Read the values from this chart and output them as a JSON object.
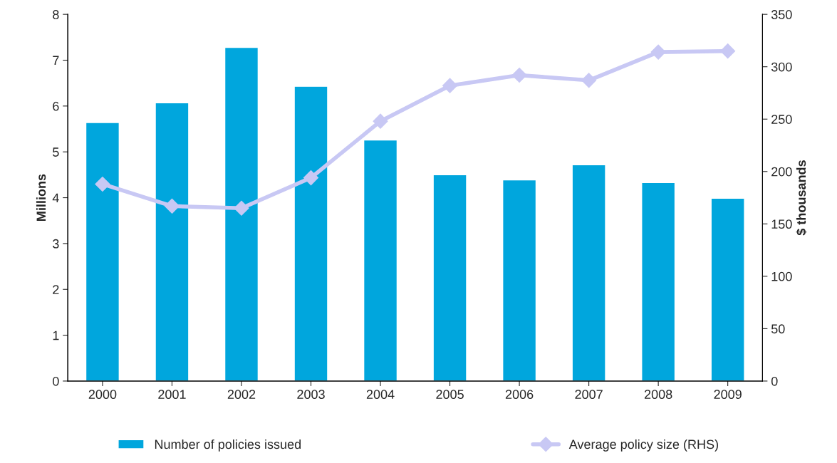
{
  "chart_data": {
    "type": "bar",
    "categories": [
      "2000",
      "2001",
      "2002",
      "2003",
      "2004",
      "2005",
      "2006",
      "2007",
      "2008",
      "2009"
    ],
    "ylabel": "Millions",
    "y2label": "$ thousands",
    "ylim": [
      0,
      8
    ],
    "yticks": [
      0,
      1,
      2,
      3,
      4,
      5,
      6,
      7,
      8
    ],
    "y2lim": [
      0,
      350
    ],
    "y2ticks": [
      0,
      50,
      100,
      150,
      200,
      250,
      300,
      350
    ],
    "series": [
      {
        "name": "Number of policies issued",
        "color": "#00a6dd",
        "values": [
          5.64,
          6.07,
          7.28,
          6.43,
          5.26,
          4.5,
          4.39,
          4.72,
          4.33,
          3.99
        ]
      },
      {
        "name": "Average policy size (RHS)",
        "type": "line",
        "axis": "y2",
        "color": "#c8c8f4",
        "marker": "diamond",
        "values": [
          188,
          167,
          165,
          194,
          248,
          282,
          292,
          287,
          314,
          315
        ]
      }
    ],
    "legend": "bottom",
    "grid": false
  }
}
